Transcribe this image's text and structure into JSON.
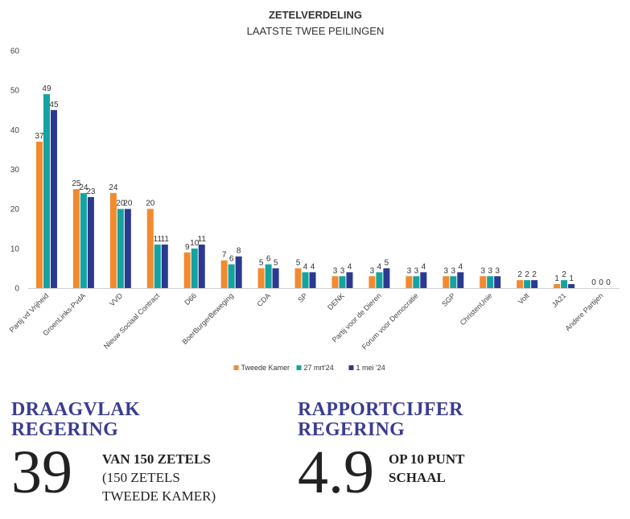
{
  "chart_data": {
    "type": "bar",
    "title": "ZETELVERDELING",
    "subtitle": "LAATSTE TWEE PEILINGEN",
    "xlabel": "",
    "ylabel": "",
    "ylim": [
      0,
      60
    ],
    "yticks": [
      0,
      10,
      20,
      30,
      40,
      50,
      60
    ],
    "grid": false,
    "legend_position": "bottom",
    "categories": [
      "Partij vd Vrijheid",
      "GroenLinks-PvdA",
      "VVD",
      "Nieuw Sociaal Contract",
      "D66",
      "BoerBurgerBeweging",
      "CDA",
      "SP",
      "DENK",
      "Partij voor de Dieren",
      "Forum voor Democratie",
      "SGP",
      "ChristenUnie",
      "Volt",
      "JA21",
      "Andere Partijen"
    ],
    "series": [
      {
        "name": "Tweede Kamer",
        "color": "#f28a2e",
        "values": [
          37,
          25,
          24,
          20,
          9,
          7,
          5,
          5,
          3,
          3,
          3,
          3,
          3,
          2,
          1,
          0
        ]
      },
      {
        "name": "27 mrt'24",
        "color": "#14a3a0",
        "values": [
          49,
          24,
          20,
          11,
          10,
          6,
          6,
          4,
          3,
          4,
          3,
          3,
          3,
          2,
          2,
          0
        ]
      },
      {
        "name": "1 mei '24",
        "color": "#2b3990",
        "values": [
          45,
          23,
          20,
          11,
          11,
          8,
          5,
          4,
          4,
          5,
          4,
          4,
          3,
          2,
          1,
          0
        ]
      }
    ]
  },
  "support": {
    "heading_line1": "DRAAGVLAK",
    "heading_line2": "REGERING",
    "number": "39",
    "line1": "VAN 150 ZETELS",
    "line2": "(150 ZETELS",
    "line3": "TWEEDE KAMER)"
  },
  "rating": {
    "heading_line1": "RAPPORTCIJFER",
    "heading_line2": "REGERING",
    "number": "4.9",
    "line1": "OP 10 PUNT",
    "line2": "SCHAAL"
  }
}
